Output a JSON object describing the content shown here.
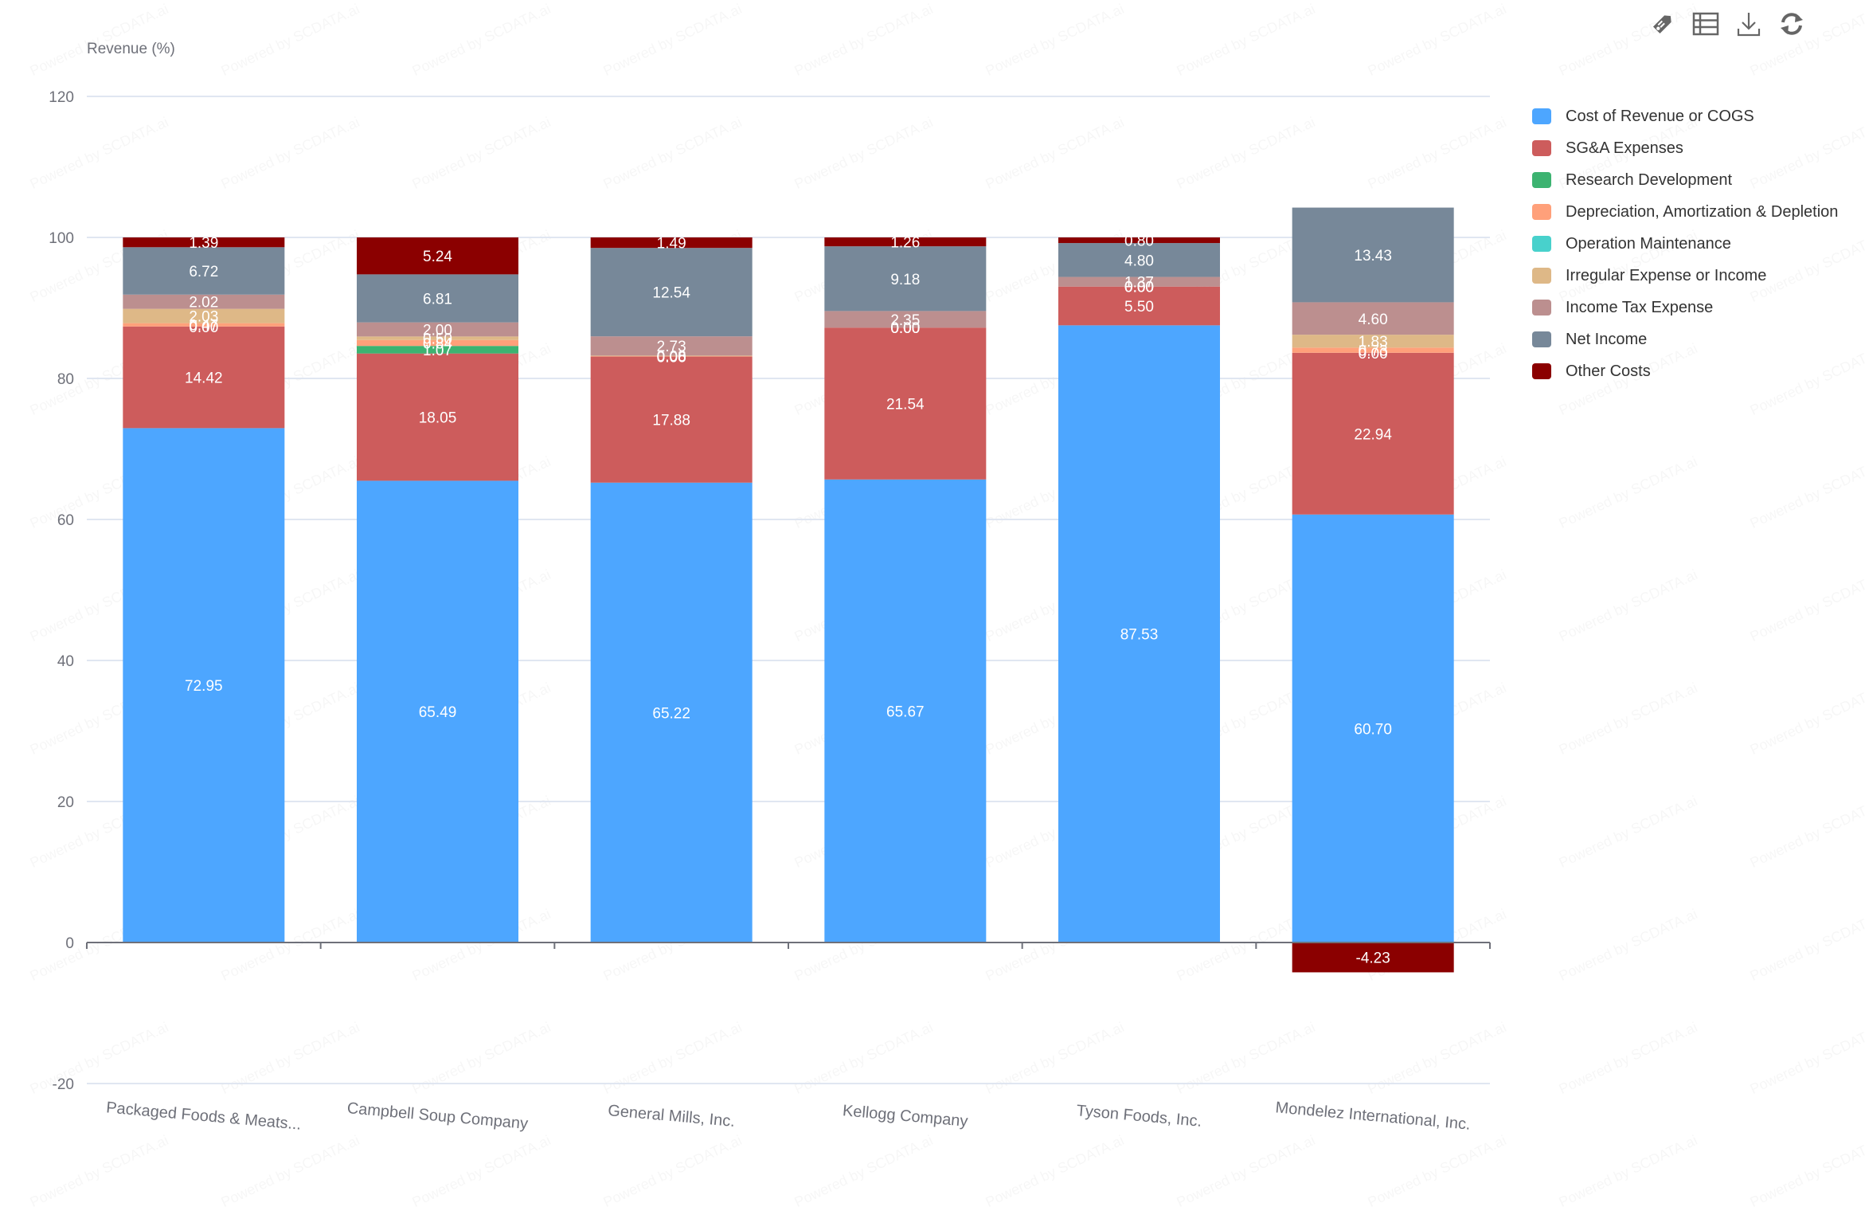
{
  "toolbar": {
    "icons": [
      "tag-icon",
      "data-table-icon",
      "download-icon",
      "refresh-icon"
    ]
  },
  "watermark": "Powered by SCDATA.ai",
  "chart_data": {
    "type": "bar",
    "stacked": true,
    "title": "",
    "xlabel": "",
    "ylabel": "Revenue (%)",
    "ylim": [
      -20,
      120
    ],
    "yticks": [
      -20,
      0,
      20,
      40,
      60,
      80,
      100,
      120
    ],
    "grid": true,
    "legend_position": "right",
    "categories": [
      "Packaged Foods & Meats...",
      "Campbell Soup Company",
      "General Mills, Inc.",
      "Kellogg Company",
      "Tyson Foods, Inc.",
      "Mondelez International, Inc."
    ],
    "series": [
      {
        "name": "Cost of Revenue or COGS",
        "color": "#4DA6FF",
        "values": [
          72.95,
          65.49,
          65.22,
          65.67,
          87.53,
          60.7
        ]
      },
      {
        "name": "SG&A Expenses",
        "color": "#CD5C5C",
        "values": [
          14.42,
          18.05,
          17.88,
          21.54,
          5.5,
          22.94
        ]
      },
      {
        "name": "Research Development",
        "color": "#3CB371",
        "values": [
          0.0,
          1.07,
          0.0,
          0.0,
          0.0,
          0.0
        ]
      },
      {
        "name": "Depreciation, Amortization & Depletion",
        "color": "#FFA07A",
        "values": [
          0.47,
          0.84,
          0.06,
          0.0,
          0.0,
          0.73
        ]
      },
      {
        "name": "Operation Maintenance",
        "color": "#48D1CC",
        "values": [
          0.0,
          0.0,
          0.0,
          0.0,
          0.0,
          0.0
        ]
      },
      {
        "name": "Irregular Expense or Income",
        "color": "#DEB887",
        "values": [
          2.03,
          0.5,
          0.08,
          0.0,
          0.0,
          1.83
        ]
      },
      {
        "name": "Income Tax Expense",
        "color": "#BC8F8F",
        "values": [
          2.02,
          2.0,
          2.73,
          2.35,
          1.37,
          4.6
        ]
      },
      {
        "name": "Net Income",
        "color": "#778899",
        "values": [
          6.72,
          6.81,
          12.54,
          9.18,
          4.8,
          13.43
        ]
      },
      {
        "name": "Other Costs",
        "color": "#8B0000",
        "values": [
          1.39,
          5.24,
          1.49,
          1.26,
          0.8,
          -4.23
        ]
      }
    ]
  }
}
